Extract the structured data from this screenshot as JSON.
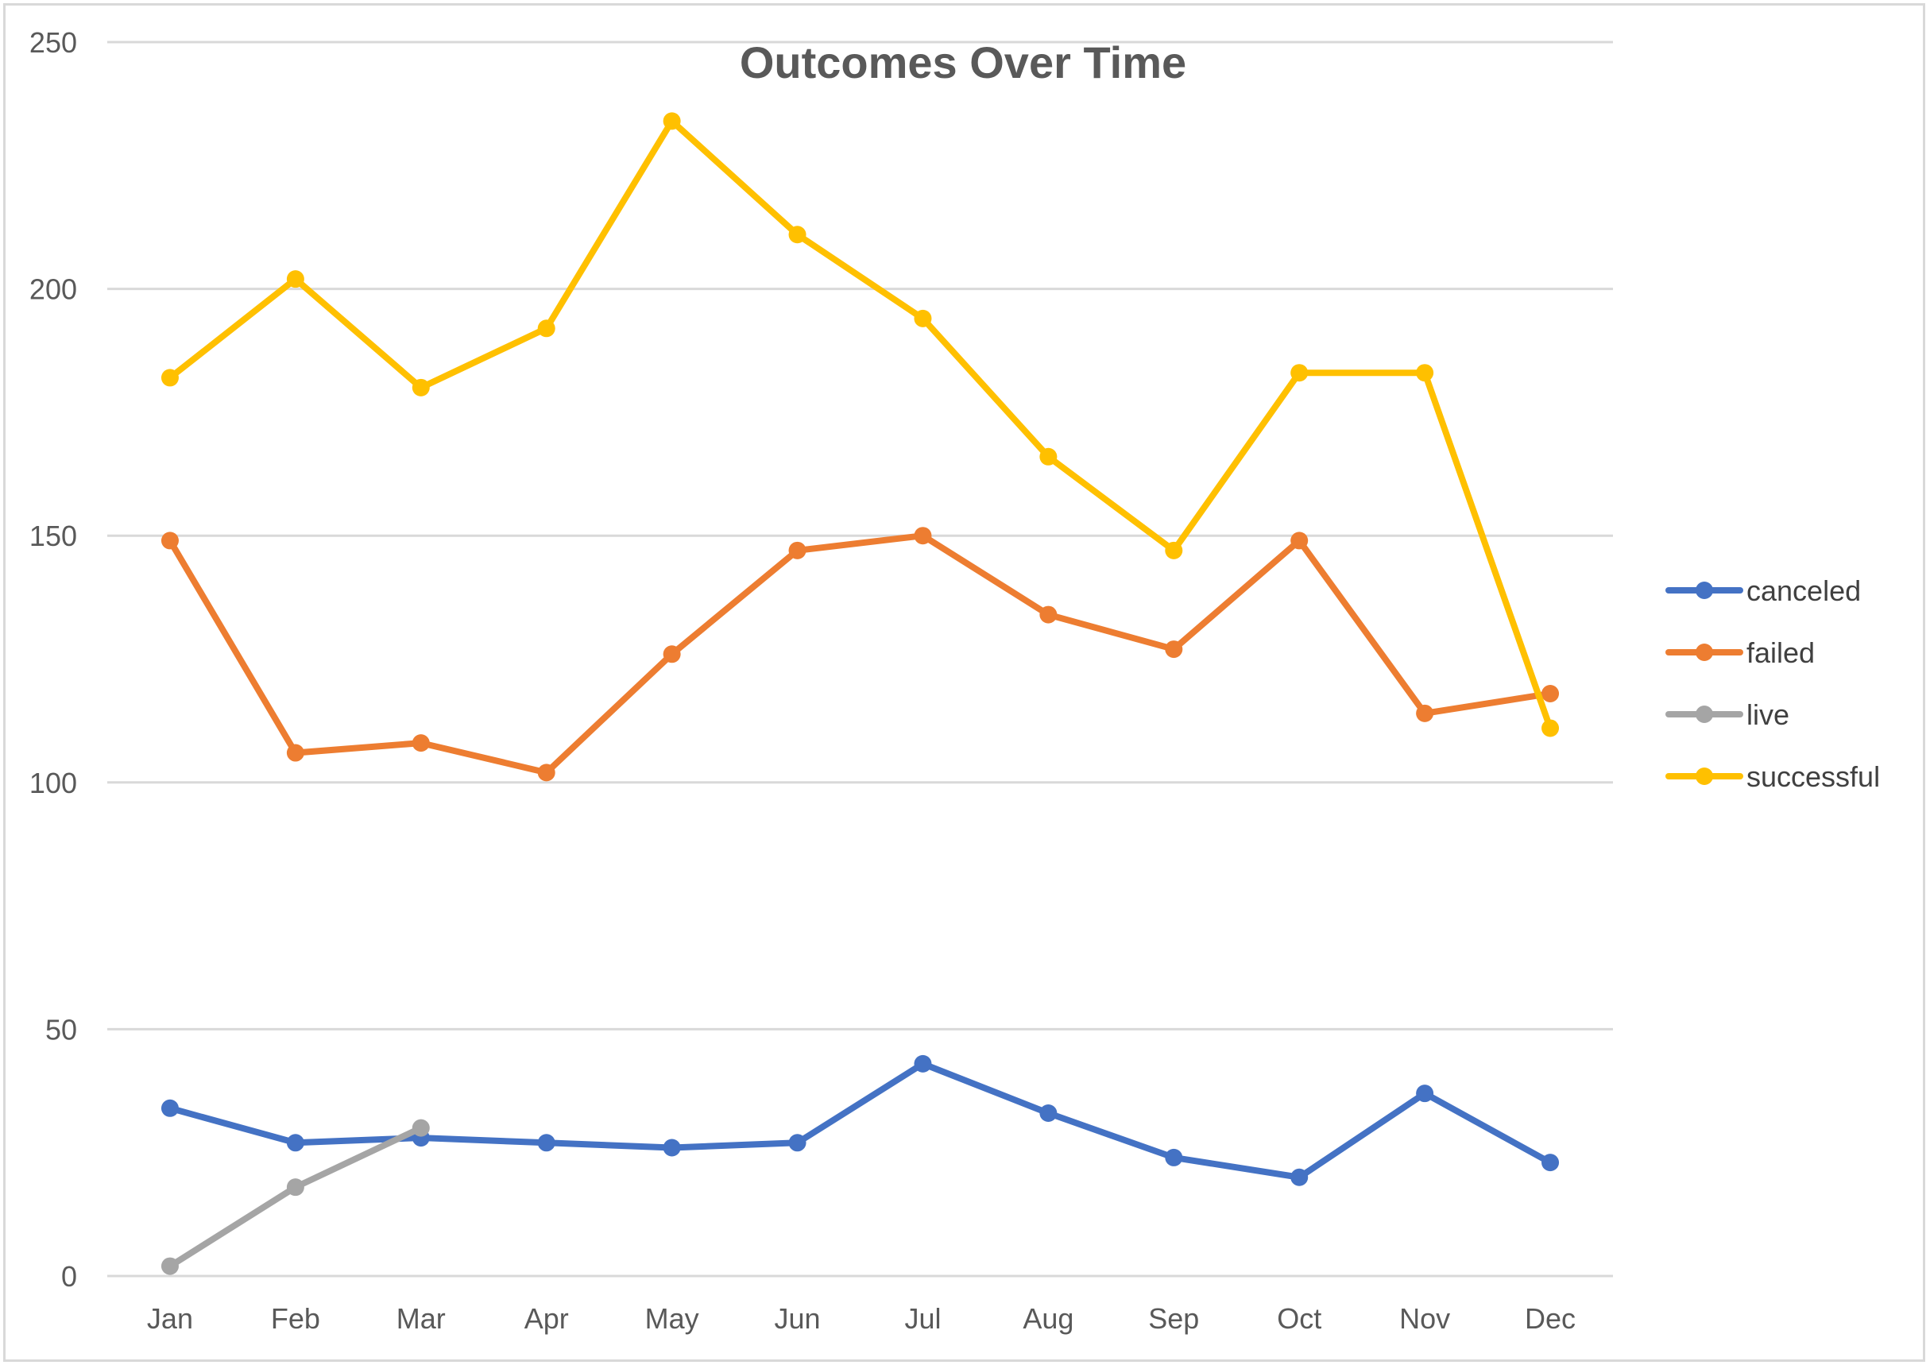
{
  "chart_data": {
    "type": "line",
    "title": "Outcomes Over Time",
    "xlabel": "",
    "ylabel": "",
    "categories": [
      "Jan",
      "Feb",
      "Mar",
      "Apr",
      "May",
      "Jun",
      "Jul",
      "Aug",
      "Sep",
      "Oct",
      "Nov",
      "Dec"
    ],
    "y_ticks": [
      "0",
      "50",
      "100",
      "150",
      "200",
      "250"
    ],
    "ylim": [
      0,
      250
    ],
    "grid": true,
    "legend_position": "right",
    "series": [
      {
        "name": "canceled",
        "color": "#4472c4",
        "values": [
          34,
          27,
          28,
          27,
          26,
          27,
          43,
          33,
          24,
          20,
          37,
          23
        ]
      },
      {
        "name": "failed",
        "color": "#ed7d31",
        "values": [
          149,
          106,
          108,
          102,
          126,
          147,
          150,
          134,
          127,
          149,
          114,
          118
        ]
      },
      {
        "name": "live",
        "color": "#a5a5a5",
        "values": [
          2,
          18,
          30,
          null,
          null,
          null,
          null,
          null,
          null,
          null,
          null,
          null
        ]
      },
      {
        "name": "successful",
        "color": "#ffc000",
        "values": [
          182,
          202,
          180,
          192,
          234,
          211,
          194,
          166,
          147,
          183,
          183,
          111
        ]
      }
    ]
  }
}
